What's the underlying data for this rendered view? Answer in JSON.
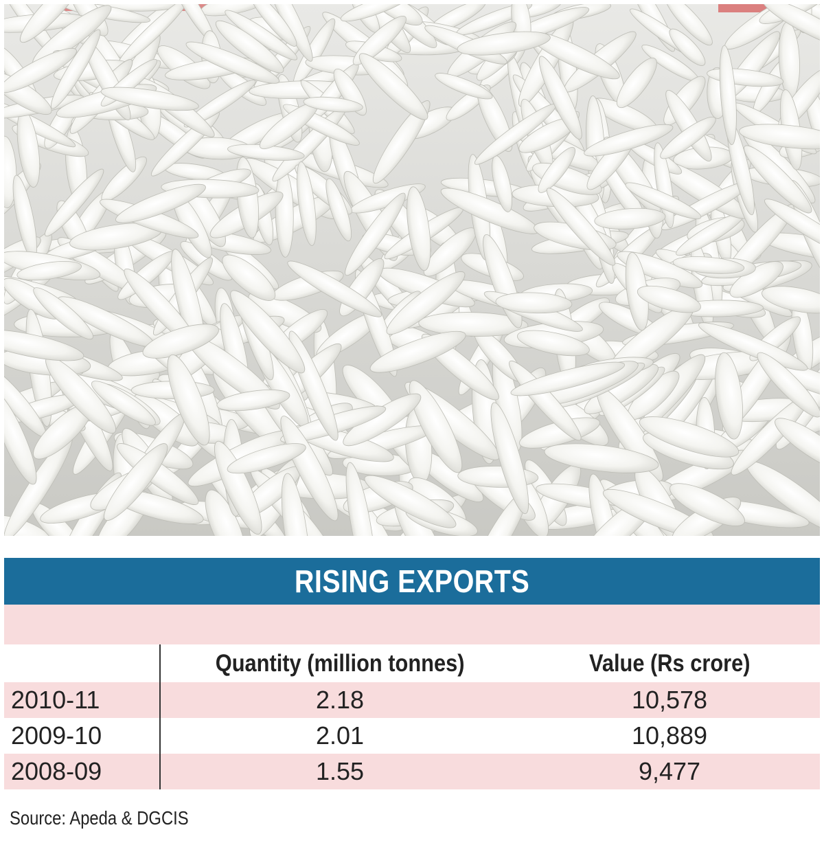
{
  "chart_data": {
    "type": "table",
    "title": "RISING EXPORTS",
    "columns": [
      "",
      "Quantity (million tonnes)",
      "Value (Rs crore)"
    ],
    "rows": [
      {
        "year": "2010-11",
        "quantity": "2.18",
        "value": "10,578"
      },
      {
        "year": "2009-10",
        "quantity": "2.01",
        "value": "10,889"
      },
      {
        "year": "2008-09",
        "quantity": "1.55",
        "value": "9,477"
      }
    ],
    "source": "Source: Apeda & DGCIS"
  },
  "colors": {
    "banner": "#1b6d9b",
    "row_highlight": "#f8dcdd",
    "photo_background": "#dcdcd8",
    "rice_grain": "#f7f7f4"
  }
}
